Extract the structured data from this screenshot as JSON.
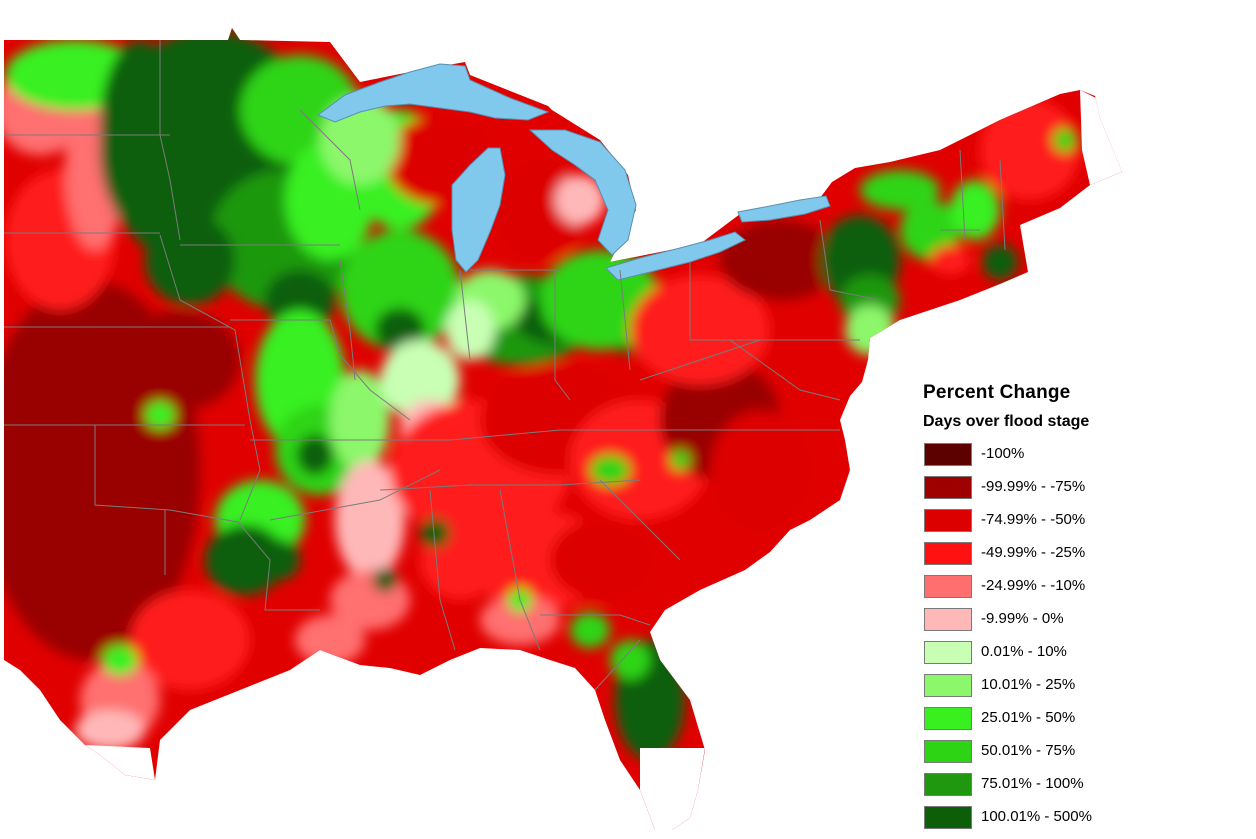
{
  "map": {
    "colors": {
      "water": "#80c9ed",
      "boundary": "#7b7b7b",
      "land_base": "#e00000"
    },
    "zones": {
      "dark_red": "#990000",
      "red_strong": "#dd0000",
      "red": "#ff1a1a",
      "salmon": "#ff6f6f",
      "pink": "#ffb8b8",
      "pale_green": "#c8ffb4",
      "light_green": "#8cf76a",
      "bright_green": "#38f020",
      "green": "#2dd414",
      "mid_green": "#1f9810",
      "dark_green": "#0d5e08"
    }
  },
  "legend": {
    "title": "Percent Change",
    "subtitle": "Days over flood stage",
    "items": [
      {
        "label": "-100%",
        "color": "#5c0000"
      },
      {
        "label": "-99.99% - -75%",
        "color": "#9e0000"
      },
      {
        "label": "-74.99% - -50%",
        "color": "#dd0000"
      },
      {
        "label": "-49.99% - -25%",
        "color": "#ff1111"
      },
      {
        "label": "-24.99% - -10%",
        "color": "#ff6f6f"
      },
      {
        "label": "-9.99% - 0%",
        "color": "#ffb8b8"
      },
      {
        "label": "0.01% - 10%",
        "color": "#c8ffb4"
      },
      {
        "label": "10.01% - 25%",
        "color": "#8cf76a"
      },
      {
        "label": "25.01% - 50%",
        "color": "#38f020"
      },
      {
        "label": "50.01% - 75%",
        "color": "#2dd414"
      },
      {
        "label": "75.01% - 100%",
        "color": "#1f9810"
      },
      {
        "label": "100.01% - 500%",
        "color": "#0d5e08"
      }
    ]
  }
}
